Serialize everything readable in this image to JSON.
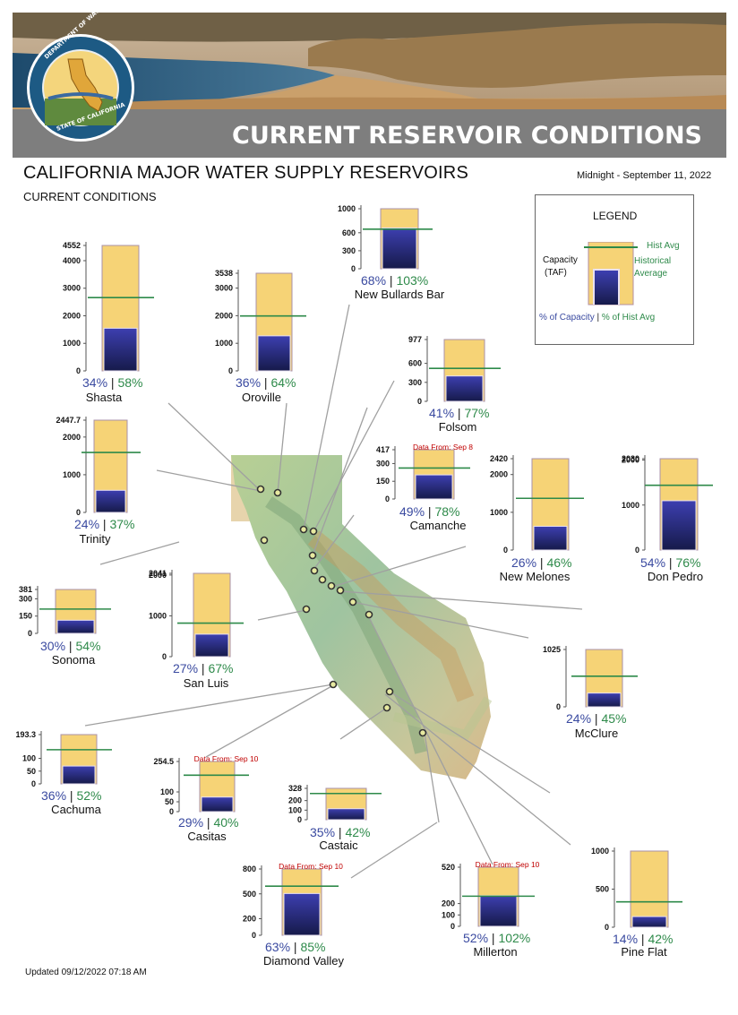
{
  "header": {
    "banner_title": "CURRENT RESERVOIR CONDITIONS",
    "seal_top_text": "DEPARTMENT OF WATER RESOURCES",
    "seal_bottom_text": "STATE OF CALIFORNIA",
    "title": "CALIFORNIA MAJOR WATER SUPPLY RESERVOIRS",
    "subtitle": "CURRENT CONDITIONS",
    "date": "Midnight - September 11, 2022"
  },
  "legend": {
    "title": "LEGEND",
    "hist_avg": "Hist Avg",
    "capacity_line1": "Capacity",
    "capacity_line2": "(TAF)",
    "historical_line1": "Historical",
    "historical_line2": "Average",
    "pct_capacity": "% of Capacity",
    "sep": "|",
    "pct_hist": "% of Hist Avg"
  },
  "updated": "Updated 09/12/2022 07:18 AM",
  "colors": {
    "capacity_fill": "#f6d376",
    "storage_top": "#3d3fb0",
    "storage_bottom": "#161a4a",
    "hist_line": "#2e8a4a",
    "pct_capacity_text": "#3a4aa0",
    "pct_hist_text": "#2e8a4a",
    "note_text": "#c00000"
  },
  "chart_data": [
    {
      "type": "bar",
      "name": "Shasta",
      "capacity": 4552,
      "storage": 1548,
      "hist_avg": 2660,
      "pct_capacity": "34%",
      "pct_hist": "58%",
      "ticks": [
        "0",
        "1000",
        "2000",
        "3000",
        "4000",
        "4552"
      ],
      "tick_values": [
        0,
        1000,
        2000,
        3000,
        4000,
        4552
      ],
      "note": ""
    },
    {
      "type": "bar",
      "name": "Oroville",
      "capacity": 3538,
      "storage": 1270,
      "hist_avg": 1990,
      "pct_capacity": "36%",
      "pct_hist": "64%",
      "ticks": [
        "0",
        "1000",
        "2000",
        "3000",
        "3538"
      ],
      "tick_values": [
        0,
        1000,
        2000,
        3000,
        3538
      ],
      "note": ""
    },
    {
      "type": "bar",
      "name": "New Bullards Bar",
      "capacity": 1000,
      "storage": 680,
      "hist_avg": 660,
      "pct_capacity": "68%",
      "pct_hist": "103%",
      "ticks": [
        "0",
        "300",
        "600",
        "1000"
      ],
      "tick_values": [
        0,
        300,
        600,
        1000
      ],
      "note": ""
    },
    {
      "type": "bar",
      "name": "Folsom",
      "capacity": 977,
      "storage": 401,
      "hist_avg": 521,
      "pct_capacity": "41%",
      "pct_hist": "77%",
      "ticks": [
        "0",
        "300",
        "600",
        "977"
      ],
      "tick_values": [
        0,
        300,
        600,
        977
      ],
      "note": ""
    },
    {
      "type": "bar",
      "name": "Trinity",
      "capacity": 2447.7,
      "storage": 587,
      "hist_avg": 1590,
      "pct_capacity": "24%",
      "pct_hist": "37%",
      "ticks": [
        "0",
        "1000",
        "2000",
        "2447.7"
      ],
      "tick_values": [
        0,
        1000,
        2000,
        2447.7
      ],
      "note": ""
    },
    {
      "type": "bar",
      "name": "Camanche",
      "capacity": 417,
      "storage": 204,
      "hist_avg": 262,
      "pct_capacity": "49%",
      "pct_hist": "78%",
      "ticks": [
        "0",
        "150",
        "300",
        "417"
      ],
      "tick_values": [
        0,
        150,
        300,
        417
      ],
      "note": "Data From: Sep 8"
    },
    {
      "type": "bar",
      "name": "New Melones",
      "capacity": 2420,
      "storage": 629,
      "hist_avg": 1370,
      "pct_capacity": "26%",
      "pct_hist": "46%",
      "ticks": [
        "0",
        "1000",
        "2000",
        "2420"
      ],
      "tick_values": [
        0,
        1000,
        2000,
        2420
      ],
      "note": ""
    },
    {
      "type": "bar",
      "name": "Don Pedro",
      "capacity": 2030,
      "storage": 1096,
      "hist_avg": 1440,
      "pct_capacity": "54%",
      "pct_hist": "76%",
      "ticks": [
        "0",
        "1000",
        "2000",
        "2030"
      ],
      "tick_values": [
        0,
        1000,
        2000,
        2030
      ],
      "note": ""
    },
    {
      "type": "bar",
      "name": "Sonoma",
      "capacity": 381,
      "storage": 114,
      "hist_avg": 211,
      "pct_capacity": "30%",
      "pct_hist": "54%",
      "ticks": [
        "0",
        "150",
        "300",
        "381"
      ],
      "tick_values": [
        0,
        150,
        300,
        381
      ],
      "note": ""
    },
    {
      "type": "bar",
      "name": "San Luis",
      "capacity": 2041,
      "storage": 551,
      "hist_avg": 822,
      "pct_capacity": "27%",
      "pct_hist": "67%",
      "ticks": [
        "0",
        "1000",
        "2000",
        "2041"
      ],
      "tick_values": [
        0,
        1000,
        2000,
        2041
      ],
      "note": ""
    },
    {
      "type": "bar",
      "name": "McClure",
      "capacity": 1025,
      "storage": 246,
      "hist_avg": 547,
      "pct_capacity": "24%",
      "pct_hist": "45%",
      "ticks": [
        "0",
        "1025"
      ],
      "tick_values": [
        0,
        1025
      ],
      "note": ""
    },
    {
      "type": "bar",
      "name": "Cachuma",
      "capacity": 193.3,
      "storage": 70,
      "hist_avg": 134,
      "pct_capacity": "36%",
      "pct_hist": "52%",
      "ticks": [
        "0",
        "50",
        "100",
        "193.3"
      ],
      "tick_values": [
        0,
        50,
        100,
        193.3
      ],
      "note": ""
    },
    {
      "type": "bar",
      "name": "Casitas",
      "capacity": 254.5,
      "storage": 74,
      "hist_avg": 185,
      "pct_capacity": "29%",
      "pct_hist": "40%",
      "ticks": [
        "0",
        "50",
        "100",
        "254.5"
      ],
      "tick_values": [
        0,
        50,
        100,
        254.5
      ],
      "note": "Data From: Sep 10"
    },
    {
      "type": "bar",
      "name": "Castaic",
      "capacity": 328,
      "storage": 115,
      "hist_avg": 274,
      "pct_capacity": "35%",
      "pct_hist": "42%",
      "ticks": [
        "0",
        "100",
        "200",
        "328"
      ],
      "tick_values": [
        0,
        100,
        200,
        328
      ],
      "note": ""
    },
    {
      "type": "bar",
      "name": "Diamond Valley",
      "capacity": 800,
      "storage": 504,
      "hist_avg": 593,
      "pct_capacity": "63%",
      "pct_hist": "85%",
      "ticks": [
        "0",
        "200",
        "500",
        "800"
      ],
      "tick_values": [
        0,
        200,
        500,
        800
      ],
      "note": "Data From: Sep 10"
    },
    {
      "type": "bar",
      "name": "Millerton",
      "capacity": 520,
      "storage": 270,
      "hist_avg": 265,
      "pct_capacity": "52%",
      "pct_hist": "102%",
      "ticks": [
        "0",
        "100",
        "200",
        "520"
      ],
      "tick_values": [
        0,
        100,
        200,
        520
      ],
      "note": "Data From: Sep 10"
    },
    {
      "type": "bar",
      "name": "Pine Flat",
      "capacity": 1000,
      "storage": 140,
      "hist_avg": 333,
      "pct_capacity": "14%",
      "pct_hist": "42%",
      "ticks": [
        "0",
        "500",
        "1000"
      ],
      "tick_values": [
        0,
        500,
        1000
      ],
      "note": ""
    }
  ]
}
